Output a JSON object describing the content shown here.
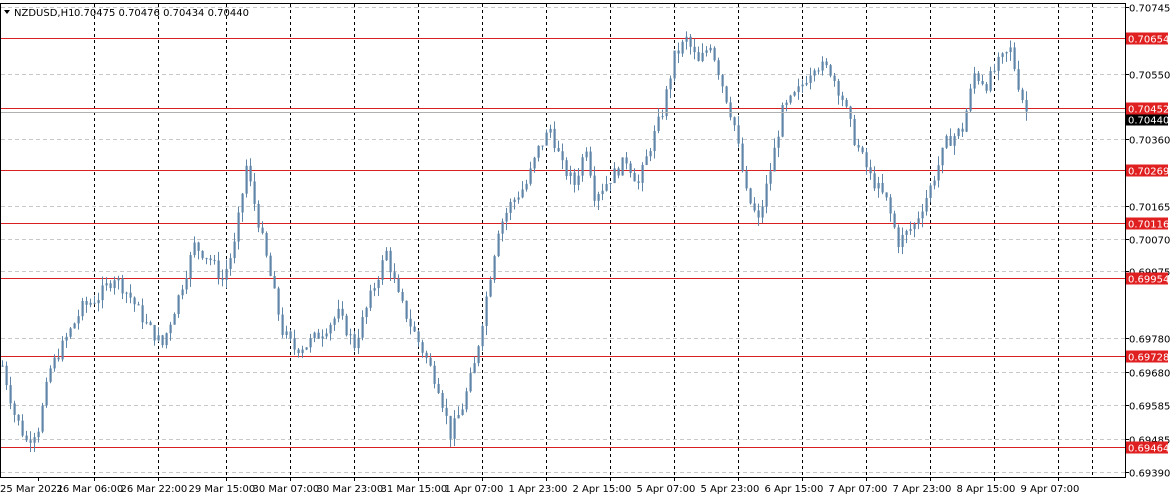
{
  "header": {
    "symbol_timeframe": "NZDUSD,H1",
    "ohlc": "0.70475 0.70476 0.70434 0.70440"
  },
  "colors": {
    "background": "#ffffff",
    "grid": "#c8c8c8",
    "candle": "#5f86a8",
    "level_line": "#d82020",
    "level_label_bg": "#e02020",
    "current_price_bg": "#000000"
  },
  "chart_data": {
    "type": "candlestick",
    "symbol": "NZDUSD",
    "timeframe": "H1",
    "ylim": [
      0.6939,
      0.70745
    ],
    "y_ticks": [
      {
        "label": "0.70745",
        "value": 0.70745
      },
      {
        "label": "0.70550",
        "value": 0.7055
      },
      {
        "label": "0.70360",
        "value": 0.7036
      },
      {
        "label": "0.70165",
        "value": 0.70165
      },
      {
        "label": "0.70070",
        "value": 0.7007
      },
      {
        "label": "0.69975",
        "value": 0.69975
      },
      {
        "label": "0.69780",
        "value": 0.6978
      },
      {
        "label": "0.69680",
        "value": 0.6968
      },
      {
        "label": "0.69585",
        "value": 0.69585
      },
      {
        "label": "0.69485",
        "value": 0.69485
      },
      {
        "label": "0.69390",
        "value": 0.6939
      }
    ],
    "x_labels": [
      {
        "label": "25 Mar 2021",
        "index": 0
      },
      {
        "label": "26 Mar 06:00",
        "index": 14
      },
      {
        "label": "26 Mar 22:00",
        "index": 30
      },
      {
        "label": "29 Mar 15:00",
        "index": 47
      },
      {
        "label": "30 Mar 07:00",
        "index": 63
      },
      {
        "label": "30 Mar 23:00",
        "index": 79
      },
      {
        "label": "31 Mar 15:00",
        "index": 95
      },
      {
        "label": "1 Apr 07:00",
        "index": 111
      },
      {
        "label": "1 Apr 23:00",
        "index": 127
      },
      {
        "label": "2 Apr 15:00",
        "index": 143
      },
      {
        "label": "5 Apr 07:00",
        "index": 159
      },
      {
        "label": "5 Apr 23:00",
        "index": 175
      },
      {
        "label": "6 Apr 15:00",
        "index": 191
      },
      {
        "label": "7 Apr 07:00",
        "index": 207
      },
      {
        "label": "7 Apr 23:00",
        "index": 223
      },
      {
        "label": "8 Apr 15:00",
        "index": 239
      },
      {
        "label": "9 Apr 07:00",
        "index": 255
      }
    ],
    "levels": [
      {
        "label": "0.70654",
        "value": 0.70654
      },
      {
        "label": "0.70452",
        "value": 0.70452
      },
      {
        "label": "0.70269",
        "value": 0.70269
      },
      {
        "label": "0.70116",
        "value": 0.70116
      },
      {
        "label": "0.69954",
        "value": 0.69954
      },
      {
        "label": "0.69728",
        "value": 0.69728
      },
      {
        "label": "0.69464",
        "value": 0.69464
      }
    ],
    "current_price": {
      "label": "0.70440",
      "value": 0.7044
    },
    "close_path": [
      [
        0,
        0.697
      ],
      [
        3,
        0.6956
      ],
      [
        6,
        0.6948
      ],
      [
        9,
        0.6952
      ],
      [
        12,
        0.6969
      ],
      [
        16,
        0.6978
      ],
      [
        20,
        0.6987
      ],
      [
        24,
        0.699
      ],
      [
        28,
        0.6996
      ],
      [
        32,
        0.699
      ],
      [
        36,
        0.6982
      ],
      [
        40,
        0.6976
      ],
      [
        44,
        0.699
      ],
      [
        48,
        0.7005
      ],
      [
        52,
        0.7001
      ],
      [
        55,
        0.6995
      ],
      [
        58,
        0.7005
      ],
      [
        61,
        0.7028
      ],
      [
        64,
        0.7012
      ],
      [
        67,
        0.6996
      ],
      [
        70,
        0.698
      ],
      [
        73,
        0.6975
      ],
      [
        76,
        0.6976
      ],
      [
        80,
        0.698
      ],
      [
        84,
        0.6985
      ],
      [
        88,
        0.6976
      ],
      [
        92,
        0.699
      ],
      [
        96,
        0.7003
      ],
      [
        99,
        0.699
      ],
      [
        102,
        0.6982
      ],
      [
        106,
        0.6972
      ],
      [
        109,
        0.6964
      ],
      [
        112,
        0.695
      ],
      [
        115,
        0.6958
      ],
      [
        118,
        0.697
      ],
      [
        121,
        0.699
      ],
      [
        124,
        0.701
      ],
      [
        127,
        0.7017
      ],
      [
        131,
        0.7023
      ],
      [
        134,
        0.7033
      ],
      [
        137,
        0.7039
      ],
      [
        140,
        0.7028
      ],
      [
        143,
        0.7023
      ],
      [
        146,
        0.7034
      ],
      [
        148,
        0.702
      ],
      [
        150,
        0.7022
      ],
      [
        153,
        0.7026
      ],
      [
        156,
        0.703
      ],
      [
        159,
        0.7023
      ],
      [
        162,
        0.7034
      ],
      [
        165,
        0.7044
      ],
      [
        168,
        0.706
      ],
      [
        171,
        0.7065
      ],
      [
        174,
        0.7058
      ],
      [
        177,
        0.7064
      ],
      [
        180,
        0.7052
      ],
      [
        183,
        0.704
      ],
      [
        186,
        0.702
      ],
      [
        189,
        0.7012
      ],
      [
        192,
        0.7027
      ],
      [
        195,
        0.7044
      ],
      [
        199,
        0.705
      ],
      [
        203,
        0.7058
      ],
      [
        207,
        0.7056
      ],
      [
        210,
        0.7048
      ],
      [
        213,
        0.7036
      ],
      [
        217,
        0.7025
      ],
      [
        221,
        0.7018
      ],
      [
        224,
        0.7006
      ],
      [
        228,
        0.7011
      ],
      [
        232,
        0.7022
      ],
      [
        236,
        0.7035
      ],
      [
        240,
        0.7039
      ],
      [
        243,
        0.7055
      ],
      [
        246,
        0.7052
      ],
      [
        249,
        0.7058
      ],
      [
        252,
        0.7062
      ],
      [
        254,
        0.7052
      ],
      [
        256,
        0.7044
      ]
    ],
    "last_index": 256
  }
}
